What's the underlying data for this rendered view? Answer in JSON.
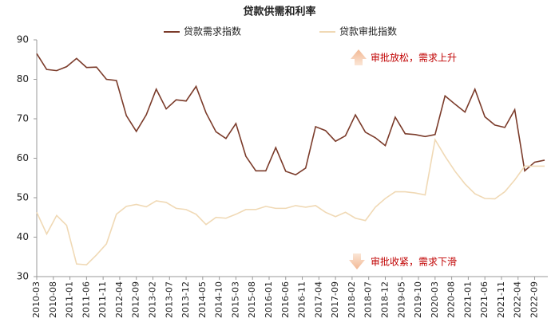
{
  "chart_data": {
    "type": "line",
    "title": "贷款供需和利率",
    "x": [
      "2010-03",
      "2010-06",
      "2010-09",
      "2010-12",
      "2011-03",
      "2011-06",
      "2011-09",
      "2011-12",
      "2012-03",
      "2012-06",
      "2012-09",
      "2012-12",
      "2013-03",
      "2013-06",
      "2013-09",
      "2013-12",
      "2014-03",
      "2014-06",
      "2014-09",
      "2014-12",
      "2015-03",
      "2015-06",
      "2015-09",
      "2015-12",
      "2016-03",
      "2016-06",
      "2016-09",
      "2016-12",
      "2017-03",
      "2017-06",
      "2017-09",
      "2017-12",
      "2018-03",
      "2018-06",
      "2018-09",
      "2018-12",
      "2019-03",
      "2019-06",
      "2019-09",
      "2019-12",
      "2020-03",
      "2020-06",
      "2020-09",
      "2020-12",
      "2021-03",
      "2021-06",
      "2021-09",
      "2021-12",
      "2022-03",
      "2022-06",
      "2022-09",
      "2022-12"
    ],
    "series": [
      {
        "name": "贷款需求指数",
        "color": "#7b3b2a",
        "values": [
          86.5,
          82.5,
          82.2,
          83.2,
          85.3,
          83,
          83.1,
          80,
          79.7,
          70.8,
          66.8,
          71,
          77.5,
          72.5,
          74.8,
          74.5,
          78.2,
          71.5,
          66.7,
          65,
          68.8,
          60.5,
          56.8,
          56.8,
          62.7,
          56.7,
          55.8,
          57.5,
          68,
          67,
          64.3,
          65.7,
          71,
          66.6,
          65.2,
          63.2,
          70.4,
          66.2,
          66,
          65.5,
          66,
          75.8,
          73.7,
          71.7,
          77.5,
          70.5,
          68.4,
          67.8,
          72.3,
          56.8,
          59,
          59.5
        ]
      },
      {
        "name": "贷款审批指数",
        "color": "#f0d9b5",
        "values": [
          46.3,
          40.8,
          45.5,
          43,
          33.2,
          33,
          35.5,
          38.3,
          45.8,
          47.8,
          48.3,
          47.7,
          49.2,
          48.8,
          47.3,
          47,
          45.8,
          43.2,
          45,
          44.8,
          45.8,
          47,
          47,
          47.8,
          47.3,
          47.3,
          48,
          47.6,
          48,
          46.3,
          45.2,
          46.3,
          44.8,
          44.2,
          47.6,
          49.8,
          51.5,
          51.5,
          51.2,
          50.7,
          64.7,
          60.5,
          56.7,
          53.5,
          51,
          49.8,
          49.7,
          51.5,
          54.5,
          58,
          58,
          58
        ]
      }
    ],
    "xticks": [
      "2010-03",
      "2010-08",
      "2011-01",
      "2011-06",
      "2011-11",
      "2012-04",
      "2012-09",
      "2013-02",
      "2013-07",
      "2013-12",
      "2014-05",
      "2014-10",
      "2015-03",
      "2015-08",
      "2016-01",
      "2016-06",
      "2016-11",
      "2017-04",
      "2017-09",
      "2018-02",
      "2018-07",
      "2018-12",
      "2019-05",
      "2019-10",
      "2020-03",
      "2020-08",
      "2021-01",
      "2021-06",
      "2021-11",
      "2022-04",
      "2022-09"
    ],
    "ylim": [
      30,
      90
    ],
    "yticks": [
      30,
      40,
      50,
      60,
      70,
      80,
      90
    ],
    "annotations": [
      "审批放松，需求上升",
      "审批收紧，需求下滑"
    ]
  }
}
